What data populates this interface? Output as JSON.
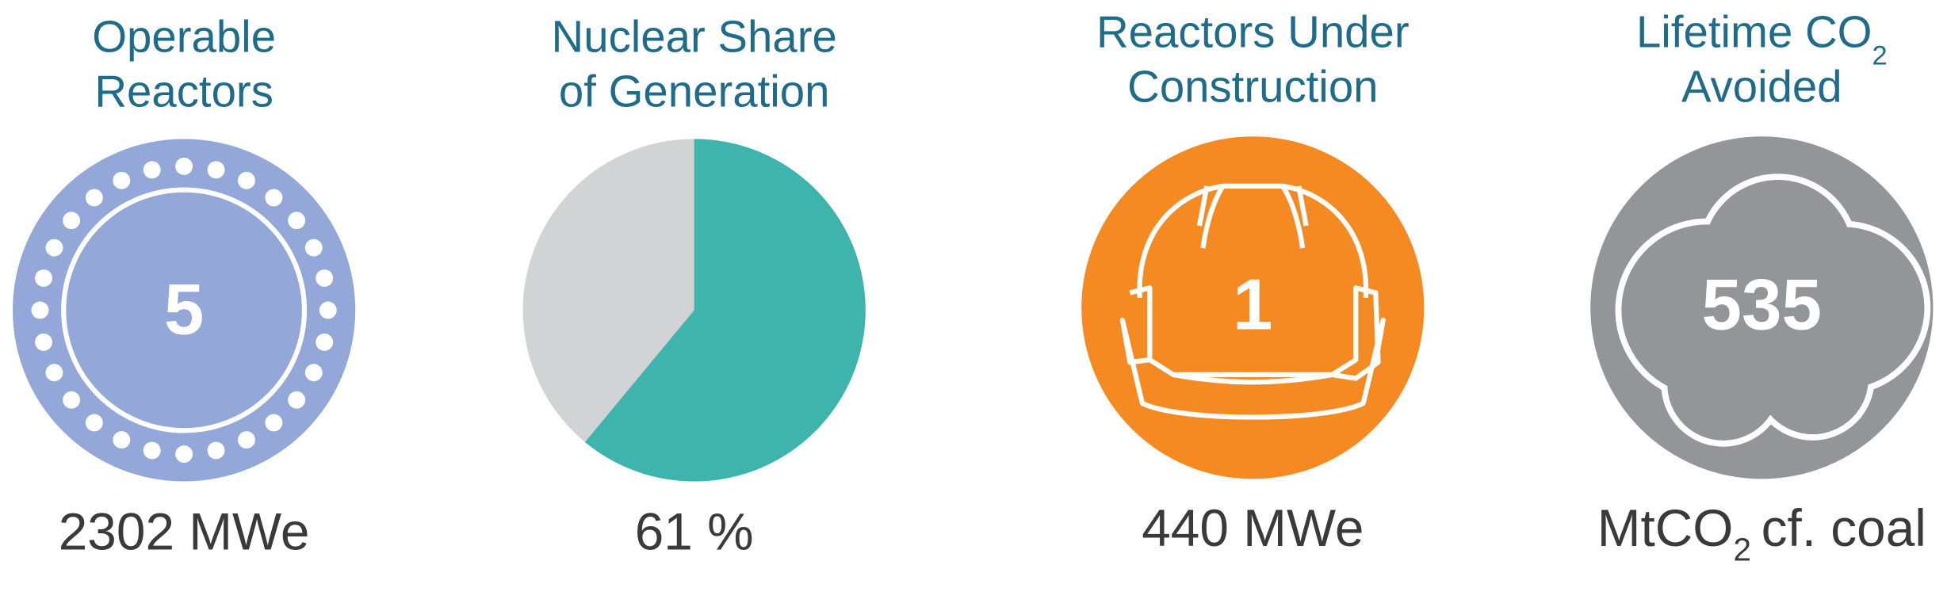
{
  "panels": [
    {
      "title": [
        "Operable",
        "Reactors"
      ],
      "value": 5,
      "caption": "2302 MWe"
    },
    {
      "title": [
        "Nuclear Share",
        "of Generation"
      ],
      "share": 61,
      "unit": "%"
    },
    {
      "title": [
        "Reactors Under",
        "Construction"
      ],
      "value": 1,
      "caption": "440 MWe"
    },
    {
      "title": [
        "Lifetime CO",
        "Avoided"
      ],
      "title_sub": "2",
      "value": 535,
      "caption": "MtCO",
      "caption_sub": "2",
      "caption_rest": "cf. coal"
    }
  ]
}
